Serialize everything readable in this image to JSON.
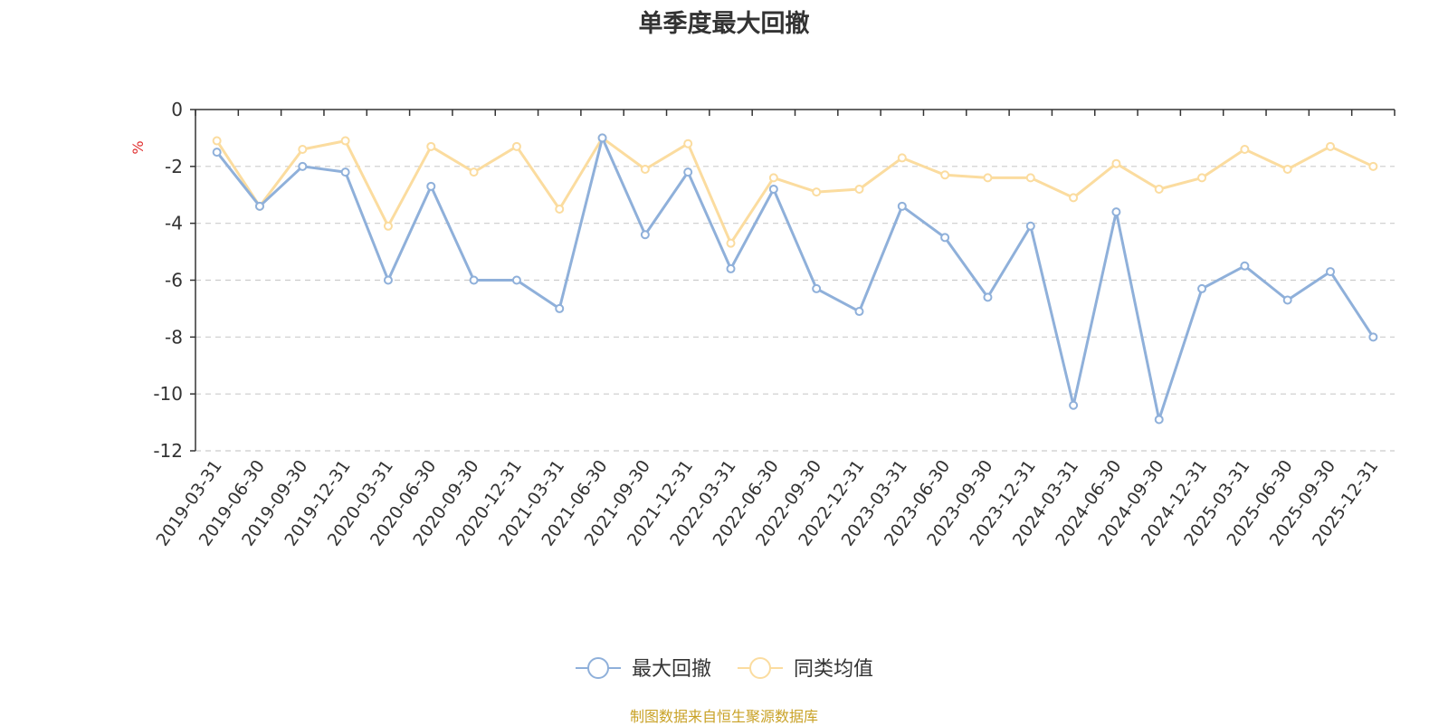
{
  "chart_data": {
    "type": "line",
    "title": "单季度最大回撤",
    "ylabel": "%",
    "xlabel": "",
    "ylim": [
      -12,
      0
    ],
    "yticks": [
      0,
      -2,
      -4,
      -6,
      -8,
      -10,
      -12
    ],
    "grid": true,
    "legend_position": "bottom-center",
    "categories": [
      "2019-03-31",
      "2019-06-30",
      "2019-09-30",
      "2019-12-31",
      "2020-03-31",
      "2020-06-30",
      "2020-09-30",
      "2020-12-31",
      "2021-03-31",
      "2021-06-30",
      "2021-09-30",
      "2021-12-31",
      "2022-03-31",
      "2022-06-30",
      "2022-09-30",
      "2022-12-31",
      "2023-03-31",
      "2023-06-30",
      "2023-09-30",
      "2023-12-31",
      "2024-03-31",
      "2024-06-30",
      "2024-09-30",
      "2024-12-31",
      "2025-03-31",
      "2025-06-30",
      "2025-09-30",
      "2025-12-31"
    ],
    "series": [
      {
        "name": "最大回撤",
        "color": "#8FB0DA",
        "values": [
          -1.5,
          -3.4,
          -2.0,
          -2.2,
          -6.0,
          -2.7,
          -6.0,
          -6.0,
          -7.0,
          -1.0,
          -4.4,
          -2.2,
          -5.6,
          -2.8,
          -6.3,
          -7.1,
          -3.4,
          -4.5,
          -6.6,
          -4.1,
          -10.4,
          -3.6,
          -10.9,
          -6.3,
          -5.5,
          -6.7,
          -5.7,
          -8.0
        ]
      },
      {
        "name": "同类均值",
        "color": "#FBDC9F",
        "values": [
          -1.1,
          -3.4,
          -1.4,
          -1.1,
          -4.1,
          -1.3,
          -2.2,
          -1.3,
          -3.5,
          -1.0,
          -2.1,
          -1.2,
          -4.7,
          -2.4,
          -2.9,
          -2.8,
          -1.7,
          -2.3,
          -2.4,
          -2.4,
          -3.1,
          -1.9,
          -2.8,
          -2.4,
          -1.4,
          -2.1,
          -1.3,
          -2.0
        ]
      }
    ]
  },
  "source_note": "制图数据来自恒生聚源数据库",
  "colors": {
    "source_note": "#C9A227",
    "ylabel": "#E03030",
    "axis": "#333333",
    "grid": "#CCCCCC"
  }
}
